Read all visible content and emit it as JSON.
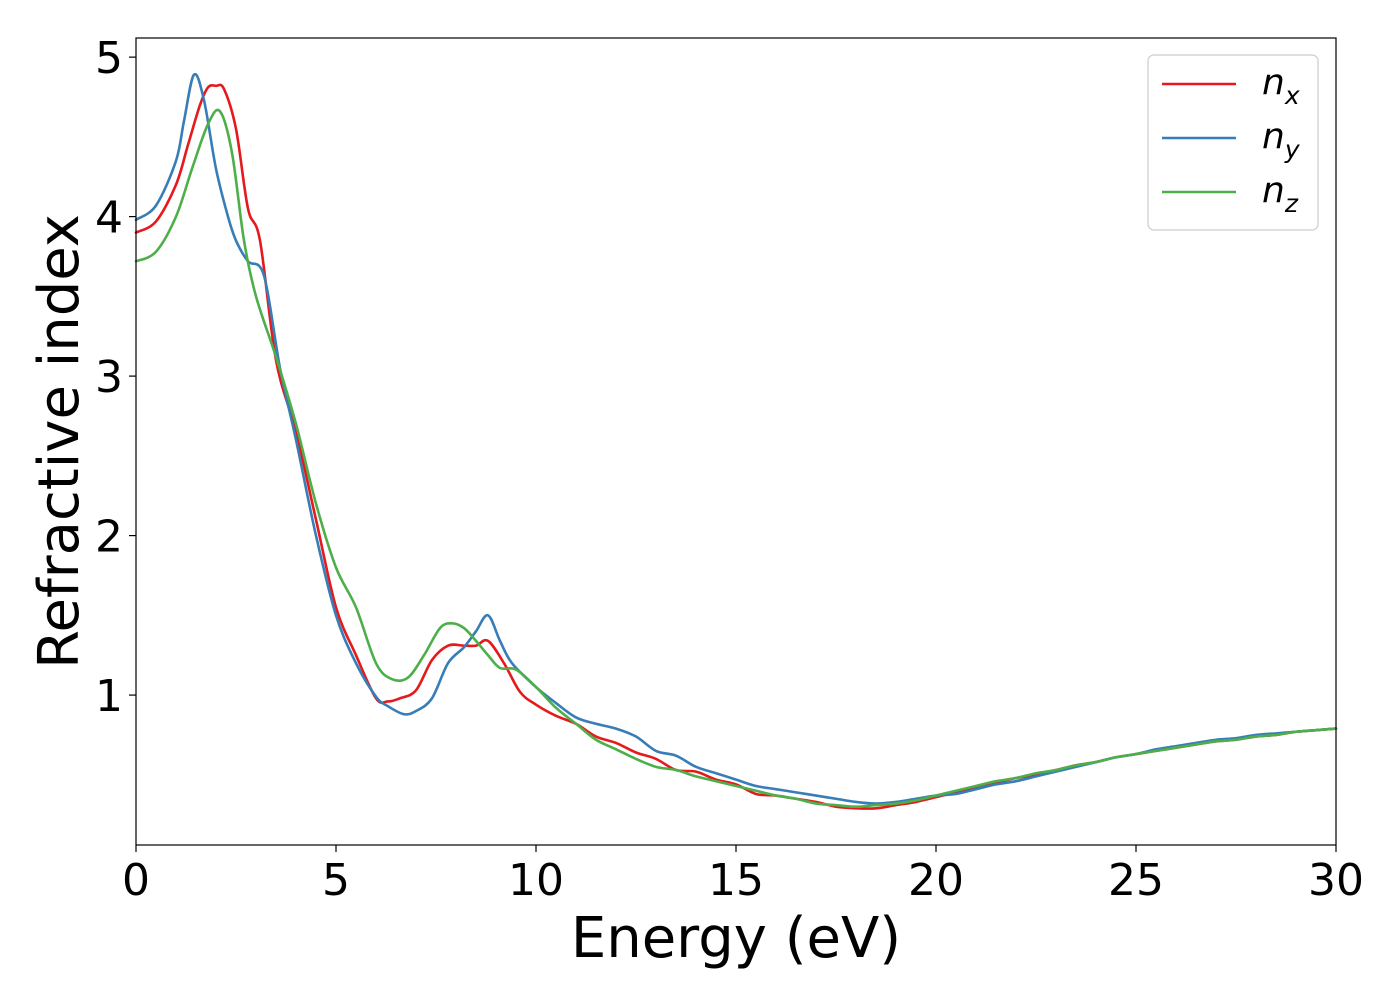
{
  "chart_data": {
    "type": "line",
    "title": "",
    "xlabel": "Energy (eV)",
    "ylabel": "Refractive index",
    "xlim": [
      0,
      30
    ],
    "ylim": [
      0.06,
      5.12
    ],
    "xticks": [
      0,
      5,
      10,
      15,
      20,
      25,
      30
    ],
    "yticks": [
      1,
      2,
      3,
      4,
      5
    ],
    "grid": false,
    "legend_position": "top-right",
    "series": [
      {
        "name": "n",
        "subscript": "x",
        "color": "#e41a1c",
        "x": [
          0,
          0.5,
          1.0,
          1.3,
          1.6,
          1.8,
          2.0,
          2.2,
          2.5,
          2.8,
          3.1,
          3.5,
          4.0,
          4.5,
          5.0,
          5.5,
          6.0,
          6.3,
          6.6,
          7.0,
          7.4,
          7.8,
          8.2,
          8.5,
          8.8,
          9.2,
          9.6,
          10.0,
          10.5,
          11.0,
          11.5,
          12.0,
          12.5,
          13.0,
          13.5,
          14.0,
          14.5,
          15.0,
          15.5,
          16.0,
          16.5,
          17.0,
          17.5,
          18.0,
          18.5,
          19.0,
          19.5,
          20.0,
          20.5,
          21.0,
          21.5,
          22.0,
          22.5,
          23.0,
          23.5,
          24.0,
          24.5,
          25.0,
          25.5,
          26.0,
          26.5,
          27.0,
          27.5,
          28.0,
          28.5,
          29.0,
          29.5,
          30.0
        ],
        "y": [
          3.9,
          3.97,
          4.2,
          4.45,
          4.7,
          4.81,
          4.82,
          4.8,
          4.55,
          4.05,
          3.85,
          3.1,
          2.65,
          2.1,
          1.55,
          1.25,
          0.98,
          0.96,
          0.98,
          1.03,
          1.22,
          1.31,
          1.31,
          1.31,
          1.34,
          1.2,
          1.02,
          0.94,
          0.87,
          0.82,
          0.74,
          0.7,
          0.64,
          0.6,
          0.53,
          0.52,
          0.47,
          0.44,
          0.38,
          0.37,
          0.35,
          0.33,
          0.3,
          0.29,
          0.29,
          0.31,
          0.33,
          0.36,
          0.39,
          0.42,
          0.45,
          0.48,
          0.5,
          0.53,
          0.56,
          0.58,
          0.61,
          0.63,
          0.65,
          0.67,
          0.69,
          0.71,
          0.72,
          0.74,
          0.75,
          0.77,
          0.78,
          0.79
        ]
      },
      {
        "name": "n",
        "subscript": "y",
        "color": "#377eb8",
        "x": [
          0,
          0.5,
          1.0,
          1.2,
          1.45,
          1.7,
          2.0,
          2.3,
          2.5,
          2.8,
          3.2,
          3.6,
          4.0,
          4.5,
          5.0,
          5.5,
          6.0,
          6.3,
          6.7,
          7.0,
          7.4,
          7.8,
          8.2,
          8.5,
          8.8,
          9.1,
          9.4,
          10.0,
          10.5,
          11.0,
          11.5,
          12.0,
          12.5,
          13.0,
          13.5,
          14.0,
          14.5,
          15.0,
          15.5,
          16.0,
          16.5,
          17.0,
          17.5,
          18.0,
          18.5,
          19.0,
          19.5,
          20.0,
          20.5,
          21.0,
          21.5,
          22.0,
          22.5,
          23.0,
          23.5,
          24.0,
          24.5,
          25.0,
          25.5,
          26.0,
          26.5,
          27.0,
          27.5,
          28.0,
          28.5,
          29.0,
          29.5,
          30.0
        ],
        "y": [
          3.98,
          4.07,
          4.35,
          4.6,
          4.89,
          4.73,
          4.3,
          4.0,
          3.85,
          3.72,
          3.63,
          3.05,
          2.6,
          2.0,
          1.5,
          1.2,
          0.99,
          0.93,
          0.88,
          0.9,
          0.98,
          1.2,
          1.3,
          1.4,
          1.5,
          1.34,
          1.2,
          1.05,
          0.95,
          0.86,
          0.82,
          0.79,
          0.74,
          0.65,
          0.62,
          0.55,
          0.51,
          0.47,
          0.43,
          0.41,
          0.39,
          0.37,
          0.35,
          0.33,
          0.32,
          0.33,
          0.35,
          0.37,
          0.38,
          0.41,
          0.44,
          0.46,
          0.49,
          0.52,
          0.55,
          0.58,
          0.61,
          0.63,
          0.66,
          0.68,
          0.7,
          0.72,
          0.73,
          0.75,
          0.76,
          0.77,
          0.78,
          0.79
        ]
      },
      {
        "name": "n",
        "subscript": "z",
        "color": "#4daf4a",
        "x": [
          0,
          0.5,
          1.0,
          1.4,
          1.8,
          2.1,
          2.4,
          2.7,
          3.0,
          3.5,
          4.0,
          4.5,
          5.0,
          5.5,
          6.0,
          6.4,
          6.8,
          7.2,
          7.6,
          7.9,
          8.2,
          8.5,
          8.8,
          9.1,
          9.5,
          10.0,
          10.5,
          11.0,
          11.5,
          12.0,
          12.5,
          13.0,
          13.5,
          14.0,
          14.5,
          15.0,
          15.5,
          16.0,
          16.5,
          17.0,
          17.5,
          18.0,
          18.5,
          19.0,
          19.5,
          20.0,
          20.5,
          21.0,
          21.5,
          22.0,
          22.5,
          23.0,
          23.5,
          24.0,
          24.5,
          25.0,
          25.5,
          26.0,
          26.5,
          27.0,
          27.5,
          28.0,
          28.5,
          29.0,
          29.5,
          30.0
        ],
        "y": [
          3.72,
          3.78,
          4.0,
          4.3,
          4.58,
          4.66,
          4.4,
          3.85,
          3.5,
          3.12,
          2.7,
          2.2,
          1.8,
          1.55,
          1.2,
          1.1,
          1.11,
          1.25,
          1.42,
          1.45,
          1.42,
          1.34,
          1.25,
          1.17,
          1.16,
          1.05,
          0.92,
          0.82,
          0.72,
          0.66,
          0.6,
          0.55,
          0.53,
          0.49,
          0.46,
          0.43,
          0.4,
          0.37,
          0.35,
          0.32,
          0.31,
          0.3,
          0.31,
          0.32,
          0.34,
          0.37,
          0.4,
          0.43,
          0.46,
          0.48,
          0.51,
          0.53,
          0.56,
          0.58,
          0.61,
          0.63,
          0.65,
          0.67,
          0.69,
          0.71,
          0.72,
          0.74,
          0.75,
          0.77,
          0.78,
          0.79
        ]
      }
    ]
  }
}
